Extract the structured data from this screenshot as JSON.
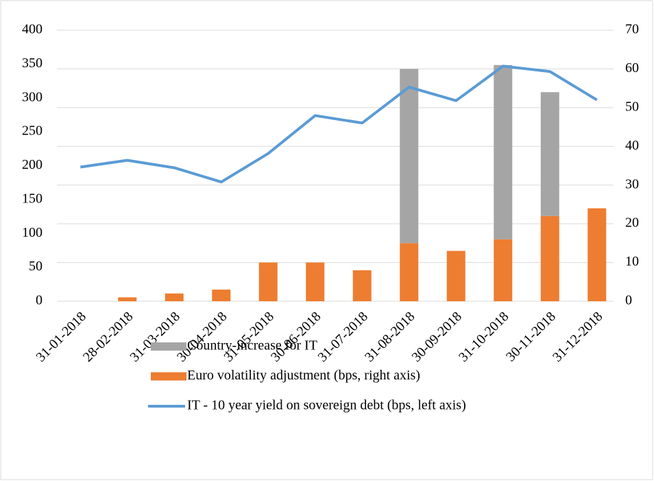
{
  "chart_data": {
    "type": "bar",
    "categories": [
      "31-01-2018",
      "28-02-2018",
      "31-03-2018",
      "30-04-2018",
      "31-05-2018",
      "30-06-2018",
      "31-07-2018",
      "31-08-2018",
      "30-09-2018",
      "31-10-2018",
      "30-11-2018",
      "31-12-2018"
    ],
    "series": [
      {
        "name": "Country-increase for IT",
        "type": "bar",
        "axis": "y2",
        "stack": true,
        "color": "#a5a5a5",
        "values": [
          null,
          null,
          null,
          null,
          null,
          null,
          null,
          45,
          null,
          45,
          32,
          null
        ]
      },
      {
        "name": "Euro volatility adjustment (bps, right axis)",
        "type": "bar",
        "axis": "y2",
        "stack": true,
        "color": "#ed7d31",
        "values": [
          0,
          1,
          2,
          3,
          10,
          10,
          8,
          15,
          13,
          16,
          22,
          24
        ]
      },
      {
        "name": "IT - 10 year yield on sovereign debt (bps, left axis)",
        "type": "line",
        "axis": "y",
        "color": "#5b9bd5",
        "values": [
          198,
          208,
          197,
          176,
          218,
          274,
          263,
          316,
          296,
          347,
          339,
          297
        ]
      }
    ],
    "ylim": [
      0,
      400
    ],
    "yticks": [
      0,
      50,
      100,
      150,
      200,
      250,
      300,
      350,
      400
    ],
    "y2lim": [
      0,
      70
    ],
    "y2ticks": [
      0,
      10,
      20,
      30,
      40,
      50,
      60,
      70
    ],
    "grid": true,
    "legend": "bottom"
  }
}
